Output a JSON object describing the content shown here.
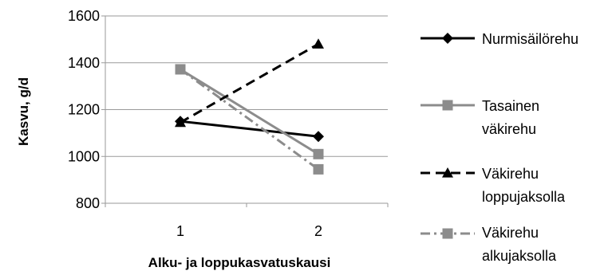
{
  "chart_data": {
    "type": "line",
    "title": "",
    "xlabel": "Alku- ja loppukasvatuskausi",
    "ylabel": "Kasvu, g/d",
    "categories": [
      "1",
      "2"
    ],
    "ylim": [
      800,
      1600
    ],
    "yticks": [
      "800",
      "1000",
      "1200",
      "1400",
      "1600"
    ],
    "grid": "horizontal",
    "legend_position": "right",
    "series": [
      {
        "name": "Nurmisäilörehu",
        "legend_lines": [
          "Nurmisäilörehu"
        ],
        "values": [
          1150,
          1085
        ],
        "color": "#000000",
        "line_style": "solid",
        "marker": "diamond"
      },
      {
        "name": "Tasainen väkirehu",
        "legend_lines": [
          "Tasainen",
          "väkirehu"
        ],
        "values": [
          1372,
          1010
        ],
        "color": "#8c8c8c",
        "line_style": "solid",
        "marker": "square"
      },
      {
        "name": "Väkirehu loppujaksolla",
        "legend_lines": [
          "Väkirehu",
          "loppujaksolla"
        ],
        "values": [
          1145,
          1480
        ],
        "color": "#000000",
        "line_style": "dash",
        "marker": "triangle"
      },
      {
        "name": "Väkirehu alkujaksolla",
        "legend_lines": [
          "Väkirehu",
          "alkujaksolla"
        ],
        "values": [
          1372,
          945
        ],
        "color": "#8c8c8c",
        "line_style": "dashdot",
        "marker": "square"
      }
    ]
  }
}
